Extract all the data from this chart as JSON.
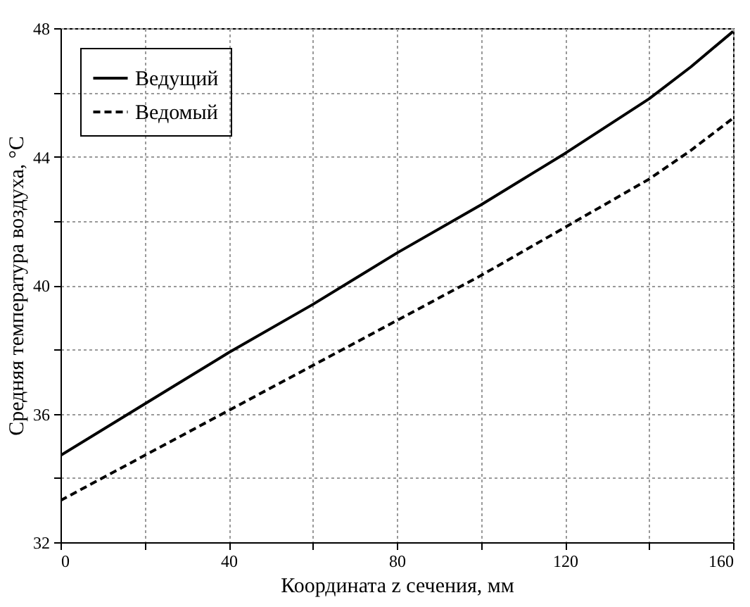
{
  "chart_data": {
    "type": "line",
    "xlabel": "Координата z сечения, мм",
    "ylabel": "Средняя температура воздуха, °C",
    "x": [
      0,
      20,
      40,
      60,
      80,
      100,
      120,
      140,
      150,
      160
    ],
    "series": [
      {
        "name": "Ведущий",
        "color": "#000000",
        "line_style": "solid",
        "values": [
          34.7,
          36.3,
          37.9,
          39.4,
          41.0,
          42.5,
          44.1,
          45.8,
          46.8,
          47.9
        ]
      },
      {
        "name": "Ведомый",
        "color": "#000000",
        "line_style": "dashed",
        "values": [
          33.3,
          34.7,
          36.1,
          37.5,
          38.9,
          40.3,
          41.8,
          43.3,
          44.2,
          45.2
        ]
      }
    ],
    "xlim": [
      0,
      160
    ],
    "ylim": [
      32,
      48
    ],
    "xticks": [
      0,
      {
        "value": 20,
        "label": null
      },
      40,
      {
        "value": 60,
        "label": null
      },
      80,
      {
        "value": 100,
        "label": null
      },
      120,
      {
        "value": 140,
        "label": null
      },
      160
    ],
    "yticks": [
      32,
      {
        "value": 34,
        "label": null
      },
      36,
      {
        "value": 38,
        "label": null
      },
      40,
      {
        "value": 42,
        "label": null
      },
      44,
      {
        "value": 46,
        "label": null
      },
      48
    ],
    "grid": true,
    "legend": "top left",
    "marker": "none"
  }
}
